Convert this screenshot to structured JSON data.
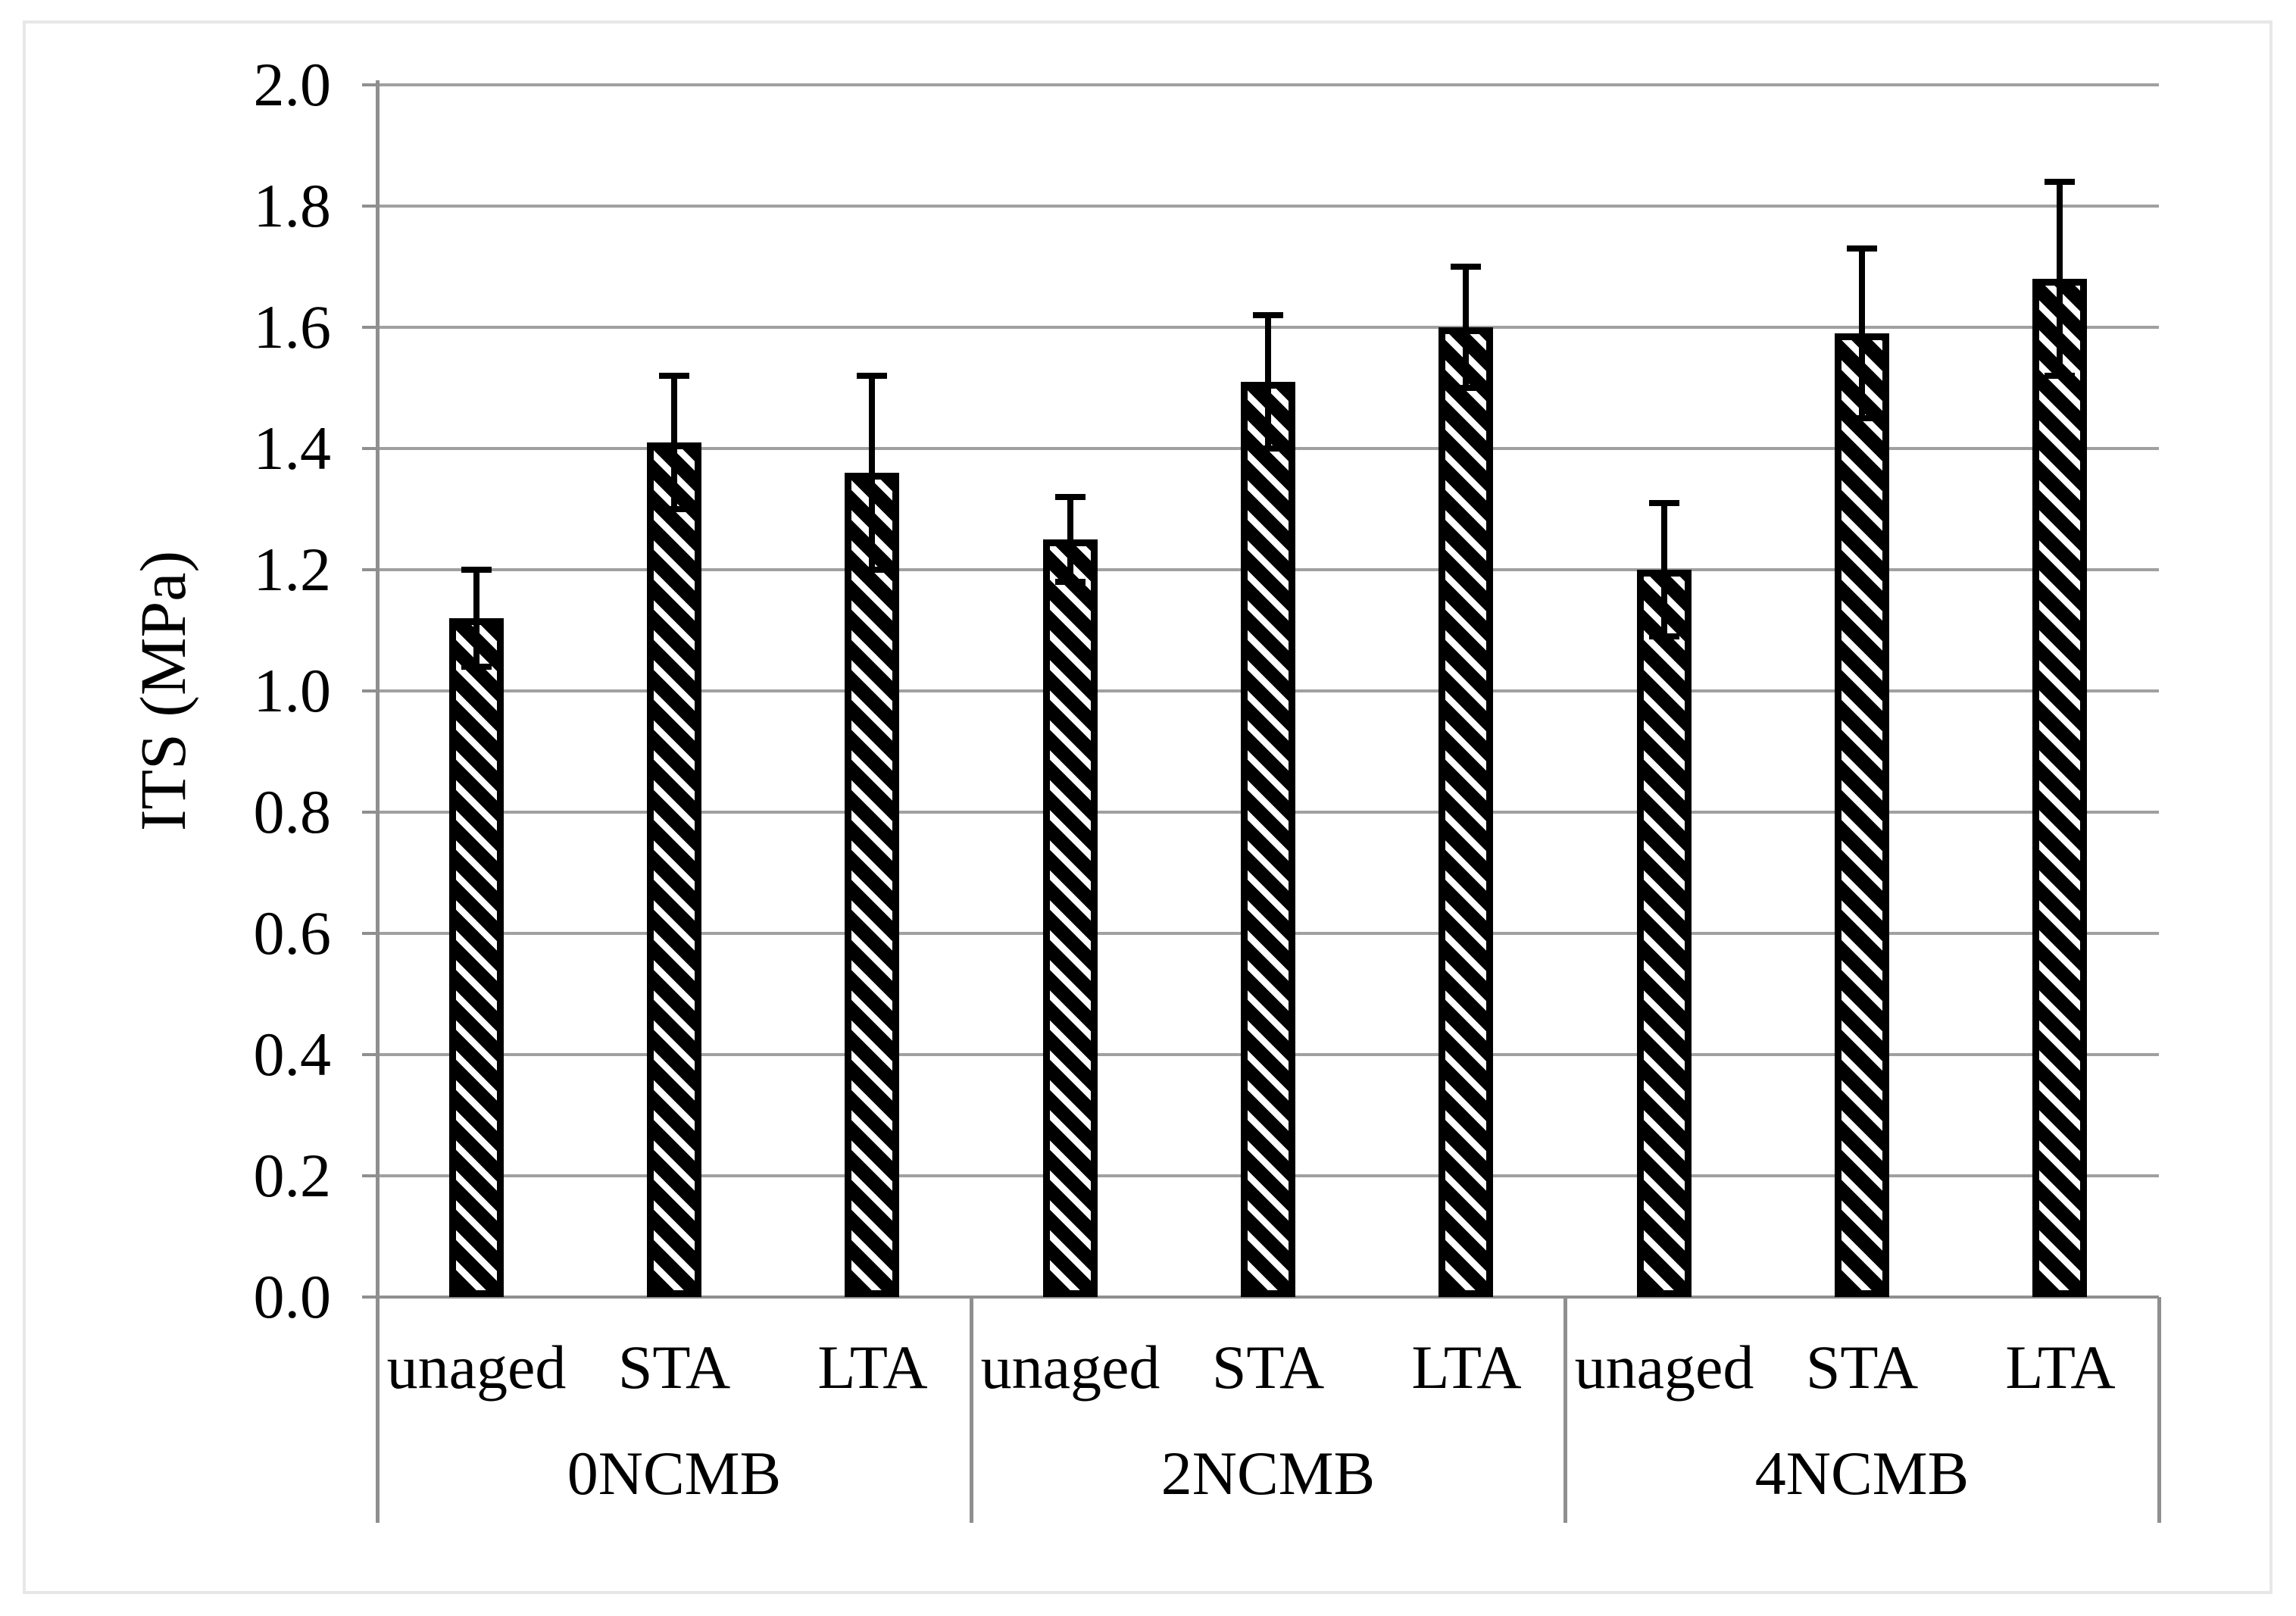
{
  "figure": {
    "background_color": "#ffffff",
    "outer_border_color": "#e7e7e7"
  },
  "chart_data": {
    "type": "bar",
    "title": "",
    "xlabel": "",
    "ylabel": "ITS (MPa)",
    "ylim": [
      0.0,
      2.0
    ],
    "ytick_step": 0.2,
    "ytick_labels": [
      "0.0",
      "0.2",
      "0.4",
      "0.6",
      "0.8",
      "1.0",
      "1.2",
      "1.4",
      "1.6",
      "1.8",
      "2.0"
    ],
    "grid": true,
    "legend_position": "none",
    "categories": [
      "unaged",
      "STA",
      "LTA"
    ],
    "groups": [
      {
        "label": "0NCMB",
        "values": [
          1.12,
          1.41,
          1.36
        ],
        "errors": [
          0.08,
          0.11,
          0.16
        ]
      },
      {
        "label": "2NCMB",
        "values": [
          1.25,
          1.51,
          1.6
        ],
        "errors": [
          0.07,
          0.11,
          0.1
        ]
      },
      {
        "label": "4NCMB",
        "values": [
          1.2,
          1.59,
          1.68
        ],
        "errors": [
          0.11,
          0.14,
          0.16
        ]
      }
    ],
    "error_bars": "symmetric",
    "bar_style": {
      "fill": "#ffffff",
      "hatch": "wide-downward-diagonal",
      "hatch_color": "#000000",
      "border_color": "#000000"
    },
    "gridline_color": "#a0a0a0",
    "axis_color": "#8f8f8f",
    "error_bar_color": "#000000",
    "text_color": "#000000"
  }
}
